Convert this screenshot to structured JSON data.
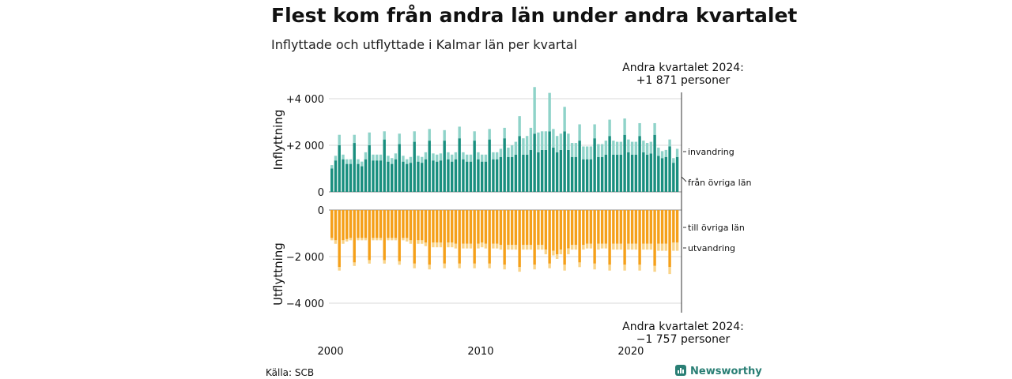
{
  "title": "Flest kom från andra län under andra kvartalet",
  "subtitle": "Inflyttade och utflyttade i Kalmar län per kvartal",
  "annotation_top": {
    "line1": "Andra kvartalet 2024:",
    "line2": "+1 871 personer"
  },
  "annotation_bottom": {
    "line1": "Andra kvartalet 2024:",
    "line2": "−1 757 personer"
  },
  "source": "Källa: SCB",
  "brand": "Newsworthy",
  "colors": {
    "inrikes_in": "#1a8f7f",
    "invandring": "#8fd3c9",
    "inrikes_ut": "#f5a01a",
    "utvandring": "#f9d48a",
    "grid": "#d9d9d9"
  },
  "chart_data": {
    "type": "bar",
    "stacked": true,
    "xlim": [
      "2000-Q1",
      "2024-Q2"
    ],
    "x_ticks": [
      "2000",
      "2010",
      "2020"
    ],
    "panels": [
      {
        "name": "inflyttning",
        "ylabel": "Inflyttning",
        "ylim": [
          0,
          4000
        ],
        "y_ticks": [
          0,
          2000,
          4000
        ],
        "y_tick_labels": [
          "0",
          "+2 000",
          "+4 000"
        ],
        "series": [
          {
            "name": "från övriga län",
            "color": "#1a8f7f",
            "values": [
              1000,
              1350,
              2000,
              1400,
              1200,
              1200,
              2100,
              1200,
              1100,
              1400,
              2000,
              1350,
              1350,
              1350,
              2250,
              1300,
              1200,
              1400,
              2050,
              1300,
              1200,
              1250,
              2150,
              1300,
              1250,
              1400,
              2200,
              1350,
              1300,
              1350,
              2200,
              1400,
              1300,
              1400,
              2300,
              1400,
              1300,
              1300,
              2200,
              1400,
              1300,
              1300,
              2250,
              1400,
              1400,
              1500,
              2300,
              1500,
              1500,
              1600,
              2400,
              1600,
              1600,
              1800,
              2500,
              1700,
              1800,
              1800,
              2600,
              1900,
              1700,
              1800,
              2600,
              1800,
              1500,
              1500,
              2200,
              1400,
              1400,
              1400,
              2300,
              1500,
              1500,
              1600,
              2400,
              1600,
              1600,
              1600,
              2450,
              1700,
              1600,
              1600,
              2400,
              1700,
              1600,
              1650,
              2450,
              1550,
              1450,
              1500,
              1950,
              1250,
              1500
            ]
          },
          {
            "name": "invandring",
            "color": "#8fd3c9",
            "values": [
              150,
              200,
              450,
              200,
              200,
              200,
              350,
              200,
              200,
              300,
              550,
              250,
              250,
              250,
              350,
              250,
              250,
              250,
              450,
              250,
              200,
              250,
              450,
              250,
              250,
              300,
              500,
              300,
              300,
              300,
              450,
              300,
              300,
              300,
              500,
              300,
              300,
              300,
              400,
              300,
              300,
              300,
              450,
              300,
              300,
              350,
              450,
              400,
              500,
              550,
              850,
              700,
              800,
              950,
              2000,
              850,
              800,
              800,
              1650,
              800,
              700,
              700,
              1050,
              700,
              600,
              600,
              700,
              550,
              550,
              550,
              600,
              550,
              550,
              600,
              700,
              600,
              550,
              550,
              700,
              550,
              550,
              550,
              550,
              500,
              500,
              500,
              500,
              350,
              300,
              300,
              300,
              200,
              350
            ]
          }
        ]
      },
      {
        "name": "utflyttning",
        "ylabel": "Utflyttning",
        "ylim": [
          -4000,
          0
        ],
        "y_ticks": [
          0,
          -2000,
          -4000
        ],
        "y_tick_labels": [
          "0",
          "−2 000",
          "−4 000"
        ],
        "series": [
          {
            "name": "till övriga län",
            "color": "#f5a01a",
            "values": [
              -1200,
              -1300,
              -2450,
              -1300,
              -1250,
              -1200,
              -2250,
              -1200,
              -1200,
              -1200,
              -2150,
              -1200,
              -1200,
              -1200,
              -2150,
              -1200,
              -1200,
              -1200,
              -2200,
              -1200,
              -1200,
              -1300,
              -2300,
              -1300,
              -1300,
              -1400,
              -2350,
              -1400,
              -1400,
              -1400,
              -2300,
              -1400,
              -1400,
              -1450,
              -2300,
              -1450,
              -1450,
              -1450,
              -2300,
              -1450,
              -1400,
              -1450,
              -2300,
              -1450,
              -1450,
              -1500,
              -2350,
              -1500,
              -1500,
              -1500,
              -2450,
              -1500,
              -1500,
              -1500,
              -2350,
              -1500,
              -1500,
              -1700,
              -2300,
              -1750,
              -1900,
              -1700,
              -2350,
              -1650,
              -1500,
              -1500,
              -2250,
              -1500,
              -1450,
              -1450,
              -2300,
              -1450,
              -1450,
              -1450,
              -2350,
              -1450,
              -1450,
              -1450,
              -2350,
              -1450,
              -1450,
              -1450,
              -2350,
              -1450,
              -1450,
              -1450,
              -2400,
              -1450,
              -1450,
              -1450,
              -2450,
              -1400,
              -1400
            ]
          },
          {
            "name": "utvandring",
            "color": "#f9d48a",
            "values": [
              -100,
              -150,
              -150,
              -150,
              -100,
              -100,
              -150,
              -100,
              -100,
              -100,
              -150,
              -100,
              -100,
              -100,
              -150,
              -100,
              -100,
              -100,
              -150,
              -100,
              -150,
              -150,
              -200,
              -150,
              -150,
              -150,
              -200,
              -200,
              -200,
              -200,
              -200,
              -200,
              -200,
              -200,
              -200,
              -200,
              -200,
              -200,
              -200,
              -200,
              -200,
              -200,
              -200,
              -200,
              -200,
              -200,
              -200,
              -200,
              -200,
              -200,
              -200,
              -200,
              -200,
              -200,
              -200,
              -200,
              -200,
              -200,
              -200,
              -200,
              -200,
              -200,
              -250,
              -250,
              -200,
              -200,
              -200,
              -200,
              -200,
              -200,
              -250,
              -250,
              -200,
              -200,
              -250,
              -250,
              -250,
              -250,
              -250,
              -250,
              -250,
              -250,
              -250,
              -250,
              -250,
              -250,
              -250,
              -300,
              -300,
              -300,
              -300,
              -350,
              -350
            ]
          }
        ]
      }
    ]
  }
}
